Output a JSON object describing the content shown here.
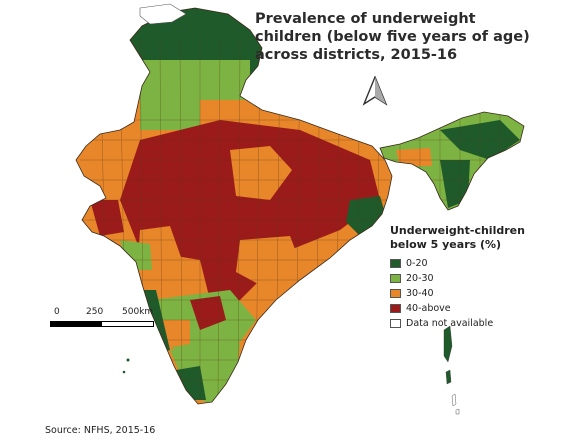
{
  "title_lines": [
    "Prevalence of underweight",
    "children (below five years of age)",
    "across districts, 2015-16"
  ],
  "legend": {
    "title_lines": [
      "Underweight-children",
      "below 5 years (%)"
    ],
    "items": [
      {
        "label": "0-20",
        "color": "#1f5a2a"
      },
      {
        "label": "20-30",
        "color": "#7cb342"
      },
      {
        "label": "30-40",
        "color": "#e8862a"
      },
      {
        "label": "40-above",
        "color": "#9b1b1b"
      },
      {
        "label": "Data not available",
        "color": "#ffffff"
      }
    ]
  },
  "scale": {
    "labels": [
      "0",
      "250",
      "500km"
    ]
  },
  "north_arrow": "north-arrow-icon",
  "source": "Source: NFHS, 2015-16",
  "colors": {
    "band_0_20": "#1f5a2a",
    "band_20_30": "#7cb342",
    "band_30_40": "#e8862a",
    "band_40_above": "#9b1b1b",
    "not_available": "#ffffff",
    "district_border": "#5a3a1a"
  }
}
